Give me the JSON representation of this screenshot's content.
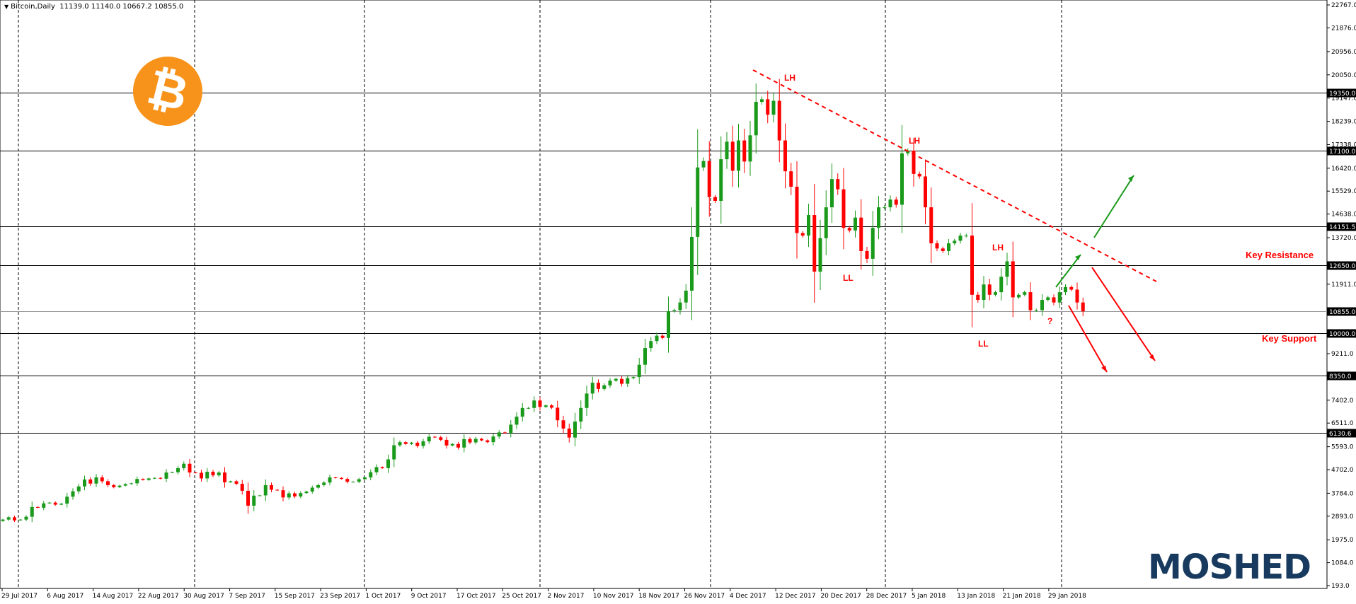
{
  "header": {
    "symbol": "Bitcoin,Daily",
    "ohlc": "11139.0 11140.0 10667.2 10855.0"
  },
  "logos": {
    "bitcoin_symbol": "₿",
    "brand": "MOSHED"
  },
  "colors": {
    "bull": "#1a9a1a",
    "bear": "#ff0000",
    "trendline": "#ff0000",
    "up_arrow": "#1a9a1a",
    "down_arrow": "#ff0000"
  },
  "chart_data": {
    "type": "candlestick",
    "title": "",
    "ylim": [
      193.0,
      22767.0
    ],
    "y_ticks": [
      22767.0,
      21876.0,
      20956.0,
      20050.0,
      19147.0,
      18239.0,
      17338.0,
      16420.0,
      15529.0,
      14638.0,
      13720.0,
      12819.0,
      11911.0,
      11020.0,
      10112.0,
      9211.0,
      8303.0,
      7402.0,
      6511.0,
      5593.0,
      4702.0,
      3784.0,
      2893.0,
      1975.0,
      1084.0,
      193.0
    ],
    "x_ticks": [
      "29 Jul 2017",
      "6 Aug 2017",
      "14 Aug 2017",
      "22 Aug 2017",
      "30 Aug 2017",
      "7 Sep 2017",
      "15 Sep 2017",
      "23 Sep 2017",
      "1 Oct 2017",
      "9 Oct 2017",
      "17 Oct 2017",
      "25 Oct 2017",
      "2 Nov 2017",
      "10 Nov 2017",
      "18 Nov 2017",
      "26 Nov 2017",
      "4 Dec 2017",
      "12 Dec 2017",
      "20 Dec 2017",
      "28 Dec 2017",
      "5 Jan 2018",
      "13 Jan 2018",
      "21 Jan 2018",
      "29 Jan 2018"
    ],
    "horizontal_levels": [
      19350.0,
      17100.0,
      14151.5,
      12650.0,
      10855.0,
      10000.0,
      8350.0,
      6130.6
    ],
    "current_price": 10855.0,
    "closes": [
      2760,
      2850,
      2730,
      2760,
      2870,
      3250,
      3220,
      3390,
      3420,
      3340,
      3380,
      3650,
      3860,
      4050,
      4320,
      4160,
      4400,
      4250,
      4100,
      4020,
      4080,
      4140,
      4170,
      4340,
      4300,
      4360,
      4380,
      4350,
      4590,
      4600,
      4760,
      4930,
      4590,
      4580,
      4360,
      4620,
      4480,
      4590,
      4210,
      4250,
      4150,
      3880,
      3300,
      3690,
      3700,
      4100,
      3920,
      3900,
      3620,
      3780,
      3660,
      3790,
      3850,
      4000,
      4100,
      4200,
      4400,
      4380,
      4340,
      4230,
      4230,
      4330,
      4400,
      4600,
      4800,
      4760,
      5100,
      5650,
      5770,
      5700,
      5750,
      5620,
      5800,
      5980,
      5960,
      5860,
      5640,
      5700,
      5560,
      5890,
      5760,
      5900,
      5840,
      5770,
      5990,
      6150,
      6130,
      6450,
      6760,
      7100,
      7100,
      7390,
      7140,
      7200,
      7110,
      6620,
      6300,
      5950,
      6570,
      7100,
      7660,
      8080,
      7840,
      7980,
      8160,
      8230,
      8040,
      8260,
      8300,
      8780,
      9430,
      9700,
      9910,
      9820,
      10860,
      10900,
      11200,
      11660,
      13750,
      16450,
      16700,
      15300,
      15150,
      16770,
      17450,
      16320,
      17500,
      16680,
      17700,
      19000,
      19100,
      18500,
      19040,
      17500,
      16300,
      15700,
      13900,
      13800,
      14600,
      12400,
      13700,
      14900,
      16000,
      15600,
      14100,
      14000,
      14500,
      13200,
      12900,
      14100,
      14900,
      14900,
      15200,
      15000,
      17000,
      17100,
      16200,
      16100,
      14900,
      13500,
      13300,
      13200,
      13500,
      13600,
      13800,
      13800,
      11500,
      11300,
      11900,
      11500,
      11600,
      12200,
      12800,
      11400,
      11500,
      11600,
      10900,
      10900,
      11300,
      11400,
      11200,
      11600,
      11800,
      11700,
      11200,
      10855
    ]
  }
}
